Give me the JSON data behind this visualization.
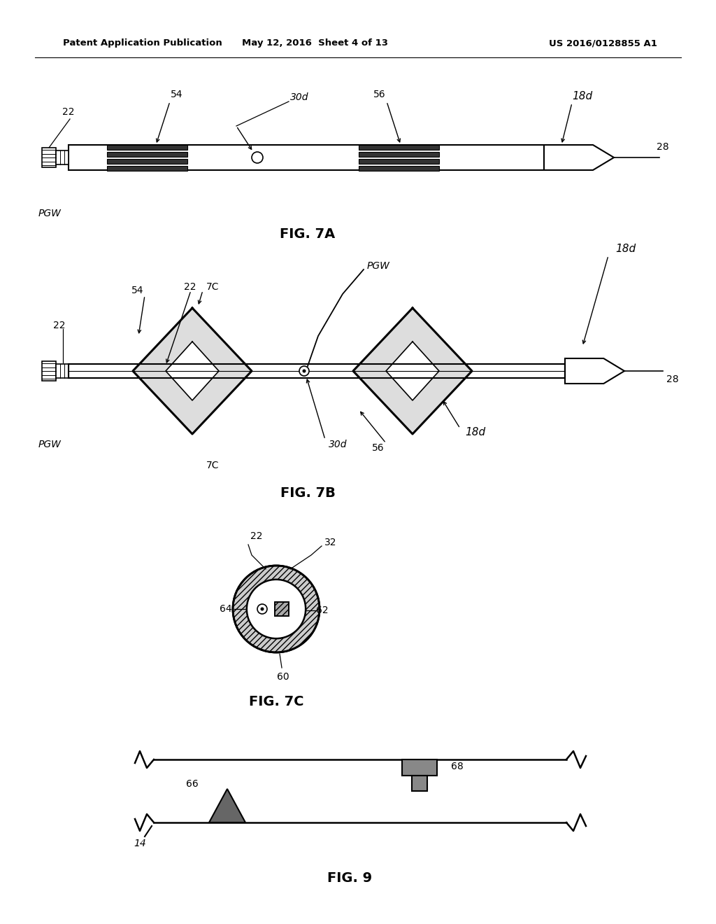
{
  "header_left": "Patent Application Publication",
  "header_center": "May 12, 2016  Sheet 4 of 13",
  "header_right": "US 2016/0128855 A1",
  "fig7a_label": "FIG. 7A",
  "fig7b_label": "FIG. 7B",
  "fig7c_label": "FIG. 7C",
  "fig9_label": "FIG. 9",
  "bg_color": "#ffffff"
}
